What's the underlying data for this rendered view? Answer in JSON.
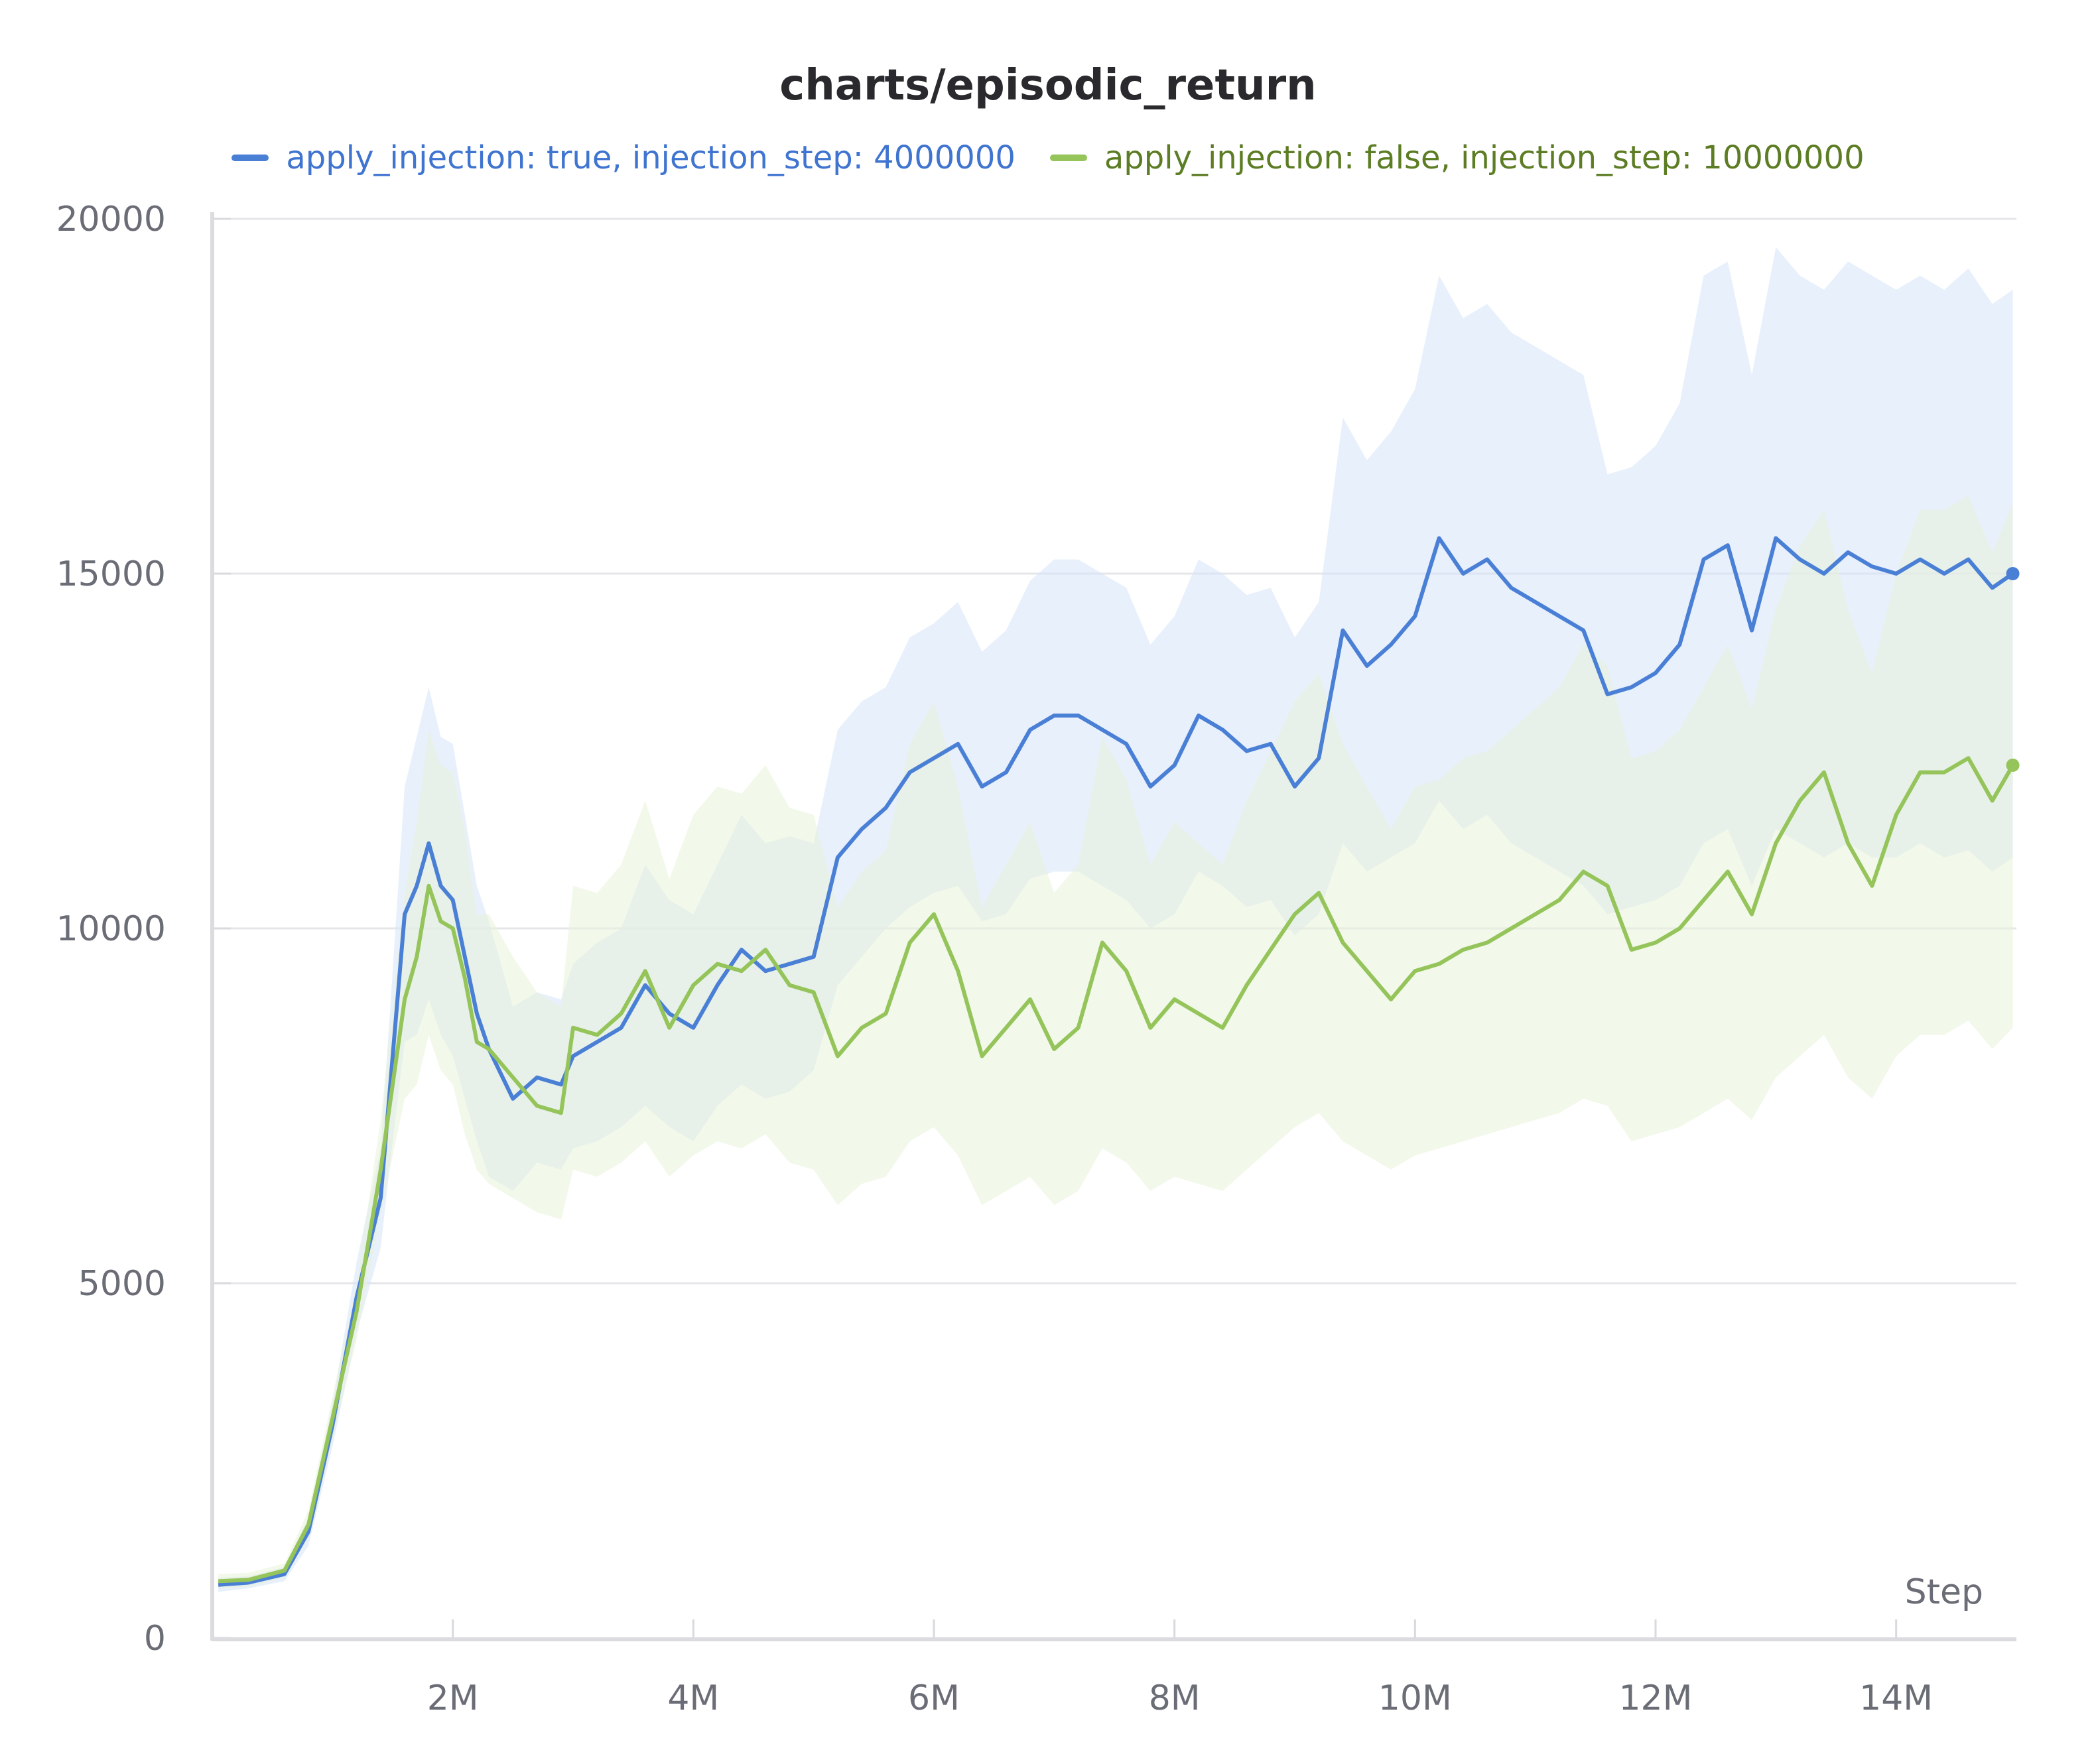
{
  "chart_data": {
    "type": "line",
    "title": "charts/episodic_return",
    "xlabel": "Step",
    "ylabel": "",
    "xlim": [
      0,
      15000000
    ],
    "ylim": [
      0,
      20000
    ],
    "xticks": [
      {
        "value": 2000000,
        "label": "2M"
      },
      {
        "value": 4000000,
        "label": "4M"
      },
      {
        "value": 6000000,
        "label": "6M"
      },
      {
        "value": 8000000,
        "label": "8M"
      },
      {
        "value": 10000000,
        "label": "10M"
      },
      {
        "value": 12000000,
        "label": "12M"
      },
      {
        "value": 14000000,
        "label": "14M"
      }
    ],
    "yticks": [
      {
        "value": 0,
        "label": "0"
      },
      {
        "value": 5000,
        "label": "5000"
      },
      {
        "value": 10000,
        "label": "10000"
      },
      {
        "value": 15000,
        "label": "15000"
      },
      {
        "value": 20000,
        "label": "20000"
      }
    ],
    "grid": true,
    "legend_position": "top",
    "series": [
      {
        "name": "apply_injection: true, injection_step: 4000000",
        "color": "#4a7fd6",
        "band_color": "#d6e4fa",
        "x": [
          0.05,
          0.3,
          0.6,
          0.8,
          1.0,
          1.2,
          1.4,
          1.5,
          1.6,
          1.7,
          1.8,
          1.9,
          2.0,
          2.1,
          2.2,
          2.3,
          2.5,
          2.7,
          2.9,
          3.0,
          3.2,
          3.4,
          3.6,
          3.8,
          4.0,
          4.2,
          4.4,
          4.6,
          4.8,
          5.0,
          5.2,
          5.4,
          5.6,
          5.8,
          6.0,
          6.2,
          6.4,
          6.6,
          6.8,
          7.0,
          7.2,
          7.4,
          7.6,
          7.8,
          8.0,
          8.2,
          8.4,
          8.6,
          8.8,
          9.0,
          9.2,
          9.4,
          9.6,
          9.8,
          10.0,
          10.2,
          10.4,
          10.6,
          10.8,
          11.0,
          11.2,
          11.4,
          11.6,
          11.8,
          12.0,
          12.2,
          12.4,
          12.6,
          12.8,
          13.0,
          13.2,
          13.4,
          13.6,
          13.8,
          14.0,
          14.2,
          14.4,
          14.6,
          14.8,
          14.97
        ],
        "y": [
          750,
          780,
          900,
          1500,
          3000,
          4800,
          6200,
          8200,
          10200,
          10600,
          11200,
          10600,
          10400,
          9600,
          8800,
          8300,
          7600,
          7900,
          7800,
          8200,
          8400,
          8600,
          9200,
          8800,
          8600,
          9200,
          9700,
          9400,
          9500,
          9600,
          11000,
          11400,
          11700,
          12200,
          12400,
          12600,
          12000,
          12200,
          12800,
          13000,
          13000,
          12800,
          12600,
          12000,
          12300,
          13000,
          12800,
          12500,
          12600,
          12000,
          12400,
          14200,
          13700,
          14000,
          14400,
          15500,
          15000,
          15200,
          14800,
          14600,
          14400,
          14200,
          13300,
          13400,
          13600,
          14000,
          15200,
          15400,
          14200,
          15500,
          15200,
          15000,
          15300,
          15100,
          15000,
          15200,
          15000,
          15200,
          14800,
          15000
        ],
        "band_low": [
          650,
          700,
          800,
          1300,
          2700,
          4300,
          5500,
          7000,
          8400,
          8500,
          9000,
          8500,
          8200,
          7600,
          7000,
          6500,
          6300,
          6700,
          6600,
          6900,
          7000,
          7200,
          7500,
          7200,
          7000,
          7500,
          7800,
          7600,
          7700,
          8000,
          9200,
          9600,
          10000,
          10300,
          10500,
          10600,
          10100,
          10200,
          10700,
          10800,
          10800,
          10600,
          10400,
          10000,
          10200,
          10800,
          10600,
          10300,
          10400,
          9900,
          10200,
          11200,
          10800,
          11000,
          11200,
          11800,
          11400,
          11600,
          11200,
          11000,
          10800,
          10600,
          10200,
          10300,
          10400,
          10600,
          11200,
          11400,
          10600,
          11400,
          11200,
          11000,
          11200,
          11000,
          11000,
          11200,
          11000,
          11100,
          10800,
          11000
        ],
        "band_high": [
          850,
          870,
          1000,
          1700,
          3300,
          5300,
          6900,
          9400,
          12000,
          12700,
          13400,
          12700,
          12600,
          11600,
          10600,
          10100,
          8900,
          9100,
          9000,
          9500,
          9800,
          10000,
          10900,
          10400,
          10200,
          10900,
          11600,
          11200,
          11300,
          11200,
          12800,
          13200,
          13400,
          14100,
          14300,
          14600,
          13900,
          14200,
          14900,
          15200,
          15200,
          15000,
          14800,
          14000,
          14400,
          15200,
          15000,
          14700,
          14800,
          14100,
          14600,
          17200,
          16600,
          17000,
          17600,
          19200,
          18600,
          18800,
          18400,
          18200,
          18000,
          17800,
          16400,
          16500,
          16800,
          17400,
          19200,
          19400,
          17800,
          19600,
          19200,
          19000,
          19400,
          19200,
          19000,
          19200,
          19000,
          19300,
          18800,
          19000
        ]
      },
      {
        "name": "apply_injection: false, injection_step: 10000000",
        "color": "#94c45a",
        "band_color": "#e8f3d9",
        "x": [
          0.05,
          0.3,
          0.6,
          0.8,
          1.0,
          1.2,
          1.4,
          1.5,
          1.6,
          1.7,
          1.8,
          1.9,
          2.0,
          2.1,
          2.2,
          2.3,
          2.5,
          2.7,
          2.9,
          3.0,
          3.2,
          3.4,
          3.6,
          3.8,
          4.0,
          4.2,
          4.4,
          4.6,
          4.8,
          5.0,
          5.2,
          5.4,
          5.6,
          5.8,
          6.0,
          6.2,
          6.4,
          6.6,
          6.8,
          7.0,
          7.2,
          7.4,
          7.6,
          7.8,
          8.0,
          8.2,
          8.4,
          8.6,
          8.8,
          9.0,
          9.2,
          9.4,
          9.6,
          9.8,
          10.0,
          10.2,
          10.4,
          10.6,
          10.8,
          11.0,
          11.2,
          11.4,
          11.6,
          11.8,
          12.0,
          12.2,
          12.4,
          12.6,
          12.8,
          13.0,
          13.2,
          13.4,
          13.6,
          13.8,
          14.0,
          14.2,
          14.4,
          14.6,
          14.8,
          14.97
        ],
        "y": [
          800,
          820,
          950,
          1600,
          3100,
          4600,
          6600,
          7800,
          9000,
          9600,
          10600,
          10100,
          10000,
          9300,
          8400,
          8300,
          7900,
          7500,
          7400,
          8600,
          8500,
          8800,
          9400,
          8600,
          9200,
          9500,
          9400,
          9700,
          9200,
          9100,
          8200,
          8600,
          8800,
          9800,
          10200,
          9400,
          8200,
          8600,
          9000,
          8300,
          8600,
          9800,
          9400,
          8600,
          9000,
          8800,
          8600,
          9200,
          9700,
          10200,
          10500,
          9800,
          9400,
          9000,
          9400,
          9500,
          9700,
          9800,
          10000,
          10200,
          10400,
          10800,
          10600,
          9700,
          9800,
          10000,
          10400,
          10800,
          10200,
          11200,
          11800,
          12200,
          11200,
          10600,
          11600,
          12200,
          12200,
          12400,
          11800,
          12300
        ],
        "band_low": [
          700,
          720,
          850,
          1400,
          2800,
          4200,
          6000,
          6800,
          7600,
          7800,
          8500,
          8000,
          7800,
          7100,
          6600,
          6400,
          6200,
          6000,
          5900,
          6600,
          6500,
          6700,
          7000,
          6500,
          6800,
          7000,
          6900,
          7100,
          6700,
          6600,
          6100,
          6400,
          6500,
          7000,
          7200,
          6800,
          6100,
          6300,
          6500,
          6100,
          6300,
          6900,
          6700,
          6300,
          6500,
          6400,
          6300,
          6600,
          6900,
          7200,
          7400,
          7000,
          6800,
          6600,
          6800,
          6900,
          7000,
          7100,
          7200,
          7300,
          7400,
          7600,
          7500,
          7000,
          7100,
          7200,
          7400,
          7600,
          7300,
          7900,
          8200,
          8500,
          7900,
          7600,
          8200,
          8500,
          8500,
          8700,
          8300,
          8600
        ],
        "band_high": [
          900,
          920,
          1050,
          1800,
          3400,
          5000,
          7300,
          8900,
          10500,
          11500,
          12800,
          12300,
          12200,
          11400,
          10200,
          10200,
          9600,
          9100,
          8900,
          10600,
          10500,
          10900,
          11800,
          10700,
          11600,
          12000,
          11900,
          12300,
          11700,
          11600,
          10300,
          10800,
          11100,
          12600,
          13200,
          12000,
          10300,
          10900,
          11500,
          10500,
          10900,
          12700,
          12100,
          10900,
          11500,
          11200,
          10900,
          11800,
          12500,
          13200,
          13600,
          12600,
          12000,
          11400,
          12000,
          12100,
          12400,
          12500,
          12800,
          13100,
          13400,
          14000,
          13700,
          12400,
          12500,
          12800,
          13400,
          14000,
          13100,
          14500,
          15400,
          15900,
          14500,
          13600,
          15000,
          15900,
          15900,
          16100,
          15300,
          16000
        ]
      }
    ]
  }
}
